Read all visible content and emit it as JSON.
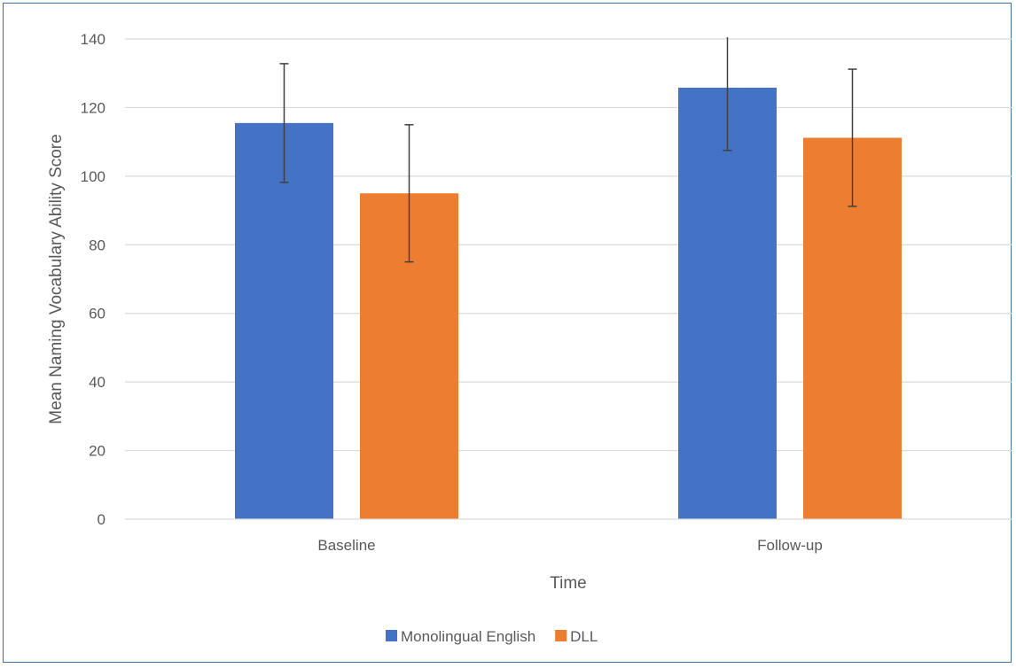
{
  "chart_data": {
    "type": "bar",
    "title": "",
    "xlabel": "Time",
    "ylabel": "Mean Naming Vocabulary Ability Score",
    "categories": [
      "Baseline",
      "Follow-up"
    ],
    "series": [
      {
        "name": "Monolingual English",
        "color": "#4472c4",
        "values": [
          115.5,
          125.8
        ],
        "error": [
          17.3,
          18.3
        ]
      },
      {
        "name": "DLL",
        "color": "#ed7d31",
        "values": [
          95.0,
          111.2
        ],
        "error": [
          20.0,
          20.0
        ]
      }
    ],
    "ylim": [
      0,
      140
    ],
    "yticks": [
      "0",
      "20",
      "40",
      "60",
      "80",
      "100",
      "120",
      "140"
    ],
    "grid": true,
    "legend_position": "bottom"
  }
}
